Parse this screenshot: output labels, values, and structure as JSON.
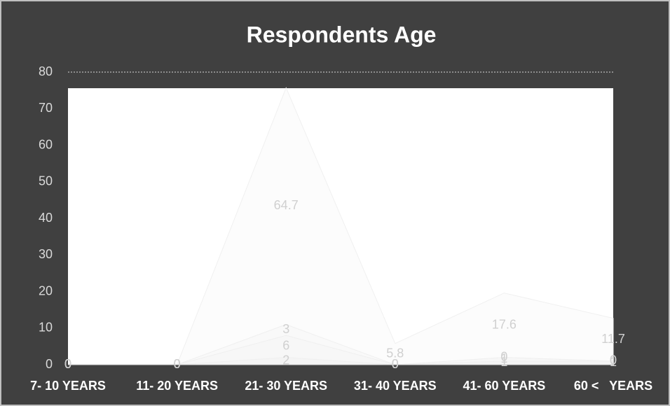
{
  "chart_data": {
    "type": "stacked_area",
    "title": "Respondents Age",
    "categories": [
      "7- 10 YEARS",
      "11- 20 YEARS",
      "21- 30 YEARS",
      "31- 40 YEARS",
      "41- 60 YEARS",
      "60 <   YEARS"
    ],
    "series": [
      {
        "color": "#f4f4f4",
        "values": [
          0,
          0,
          2,
          0,
          1,
          1
        ]
      },
      {
        "color": "#f7f7f7",
        "values": [
          0,
          0,
          6,
          0,
          1,
          0
        ]
      },
      {
        "color": "#f9f9f9",
        "values": [
          0,
          0,
          3,
          0,
          0,
          0
        ]
      },
      {
        "color": "#fcfcfc",
        "values": [
          0,
          0,
          64.7,
          5.8,
          17.6,
          11.7
        ]
      }
    ],
    "ylim": [
      0,
      80
    ],
    "yticks": [
      0,
      10,
      20,
      30,
      40,
      50,
      60,
      70,
      80
    ],
    "grid": true
  }
}
